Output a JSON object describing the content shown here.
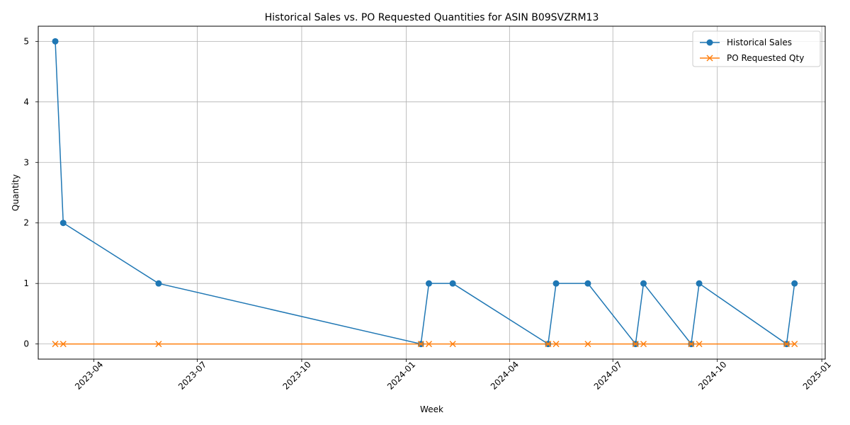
{
  "chart_data": {
    "type": "line",
    "title": "Historical Sales vs. PO Requested Quantities for ASIN B09SVZRM13",
    "xlabel": "Week",
    "ylabel": "Quantity",
    "x_type": "date",
    "xlim": [
      "2023-02-11",
      "2025-01-04"
    ],
    "ylim": [
      -0.25,
      5.25
    ],
    "x_ticks": [
      "2023-04-01",
      "2023-07-01",
      "2023-10-01",
      "2024-01-01",
      "2024-04-01",
      "2024-07-01",
      "2024-10-01",
      "2025-01-01"
    ],
    "x_tick_labels": [
      "2023-04",
      "2023-07",
      "2023-10",
      "2024-01",
      "2024-04",
      "2024-07",
      "2024-10",
      "2025-01"
    ],
    "y_ticks": [
      0,
      1,
      2,
      3,
      4,
      5
    ],
    "grid": true,
    "legend_position": "top-right",
    "x": [
      "2023-02-26",
      "2023-03-05",
      "2023-05-28",
      "2024-01-14",
      "2024-01-21",
      "2024-02-11",
      "2024-05-05",
      "2024-05-12",
      "2024-06-09",
      "2024-07-21",
      "2024-07-28",
      "2024-09-08",
      "2024-09-15",
      "2024-12-01",
      "2024-12-08"
    ],
    "series": [
      {
        "name": "Historical Sales",
        "color": "#1f77b4",
        "marker": "circle",
        "values": [
          5,
          2,
          1,
          0,
          1,
          1,
          0,
          1,
          1,
          0,
          1,
          0,
          1,
          0,
          1
        ]
      },
      {
        "name": "PO Requested Qty",
        "color": "#ff7f0e",
        "marker": "x",
        "values": [
          0,
          0,
          0,
          0,
          0,
          0,
          0,
          0,
          0,
          0,
          0,
          0,
          0,
          0,
          0
        ]
      }
    ]
  }
}
